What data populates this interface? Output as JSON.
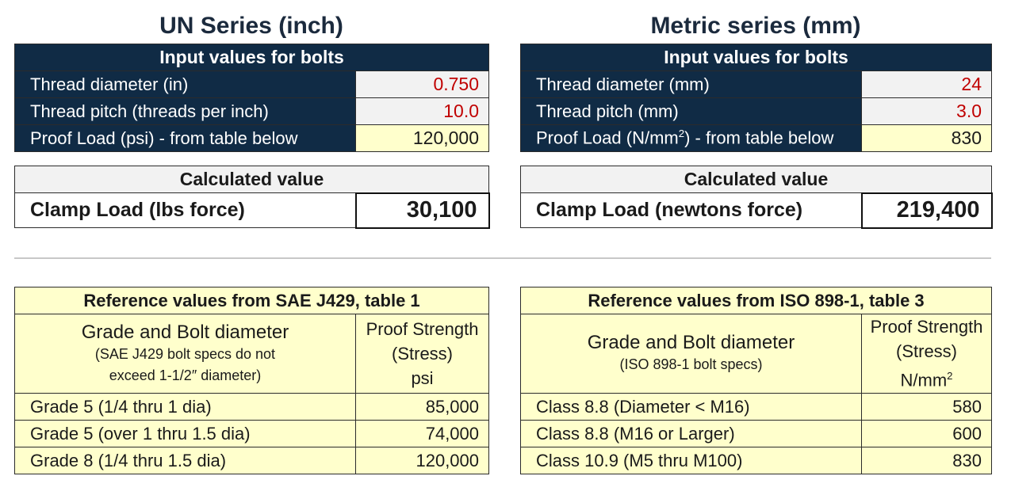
{
  "un": {
    "title": "UN Series (inch)",
    "input_header": "Input values for bolts",
    "inputs": [
      {
        "label": "Thread diameter (in)",
        "value": "0.750"
      },
      {
        "label": "Thread pitch (threads per inch)",
        "value": "10.0"
      },
      {
        "label": "Proof Load (psi) - from table below",
        "value": "120,000"
      }
    ],
    "calc_header": "Calculated value",
    "calc_label": "Clamp Load (lbs force)",
    "calc_value": "30,100",
    "ref_header": "Reference values from SAE J429, table 1",
    "ref_col1_main": "Grade and Bolt diameter",
    "ref_col1_sub1": "(SAE J429 bolt specs do not",
    "ref_col1_sub2": "exceed 1-1/2″ diameter)",
    "ref_col2_l1": "Proof Strength",
    "ref_col2_l2": "(Stress)",
    "ref_col2_unit": "psi",
    "rows": [
      {
        "label": "Grade 5 (1/4 thru 1 dia)",
        "value": "85,000"
      },
      {
        "label": "Grade 5 (over 1 thru 1.5 dia)",
        "value": "74,000"
      },
      {
        "label": "Grade 8 (1/4 thru 1.5 dia)",
        "value": "120,000"
      }
    ]
  },
  "metric": {
    "title": "Metric series (mm)",
    "input_header": "Input values for bolts",
    "inputs": [
      {
        "label": "Thread diameter (mm)",
        "value": "24"
      },
      {
        "label": "Thread pitch (mm)",
        "value": "3.0"
      },
      {
        "label_pre": "Proof Load (N/mm",
        "label_sup": "2",
        "label_post": ") - from table below",
        "value": "830"
      }
    ],
    "calc_header": "Calculated value",
    "calc_label": "Clamp Load (newtons force)",
    "calc_value": "219,400",
    "ref_header": "Reference values from ISO 898-1, table 3",
    "ref_col1_main": "Grade and Bolt diameter",
    "ref_col1_sub1": "(ISO 898-1 bolt specs)",
    "ref_col2_l1": "Proof Strength",
    "ref_col2_l2": "(Stress)",
    "ref_col2_unit_pre": "N/mm",
    "ref_col2_unit_sup": "2",
    "rows": [
      {
        "label": "Class 8.8 (Diameter < M16)",
        "value": "580"
      },
      {
        "label": "Class 8.8 (M16 or Larger)",
        "value": "600"
      },
      {
        "label": "Class 10.9 (M5 thru M100)",
        "value": "830"
      }
    ]
  },
  "colors": {
    "header_navy": "#102b45",
    "input_red": "#c00000",
    "highlight_yellow": "#ffffcc",
    "title_navy": "#1b2a3d"
  }
}
